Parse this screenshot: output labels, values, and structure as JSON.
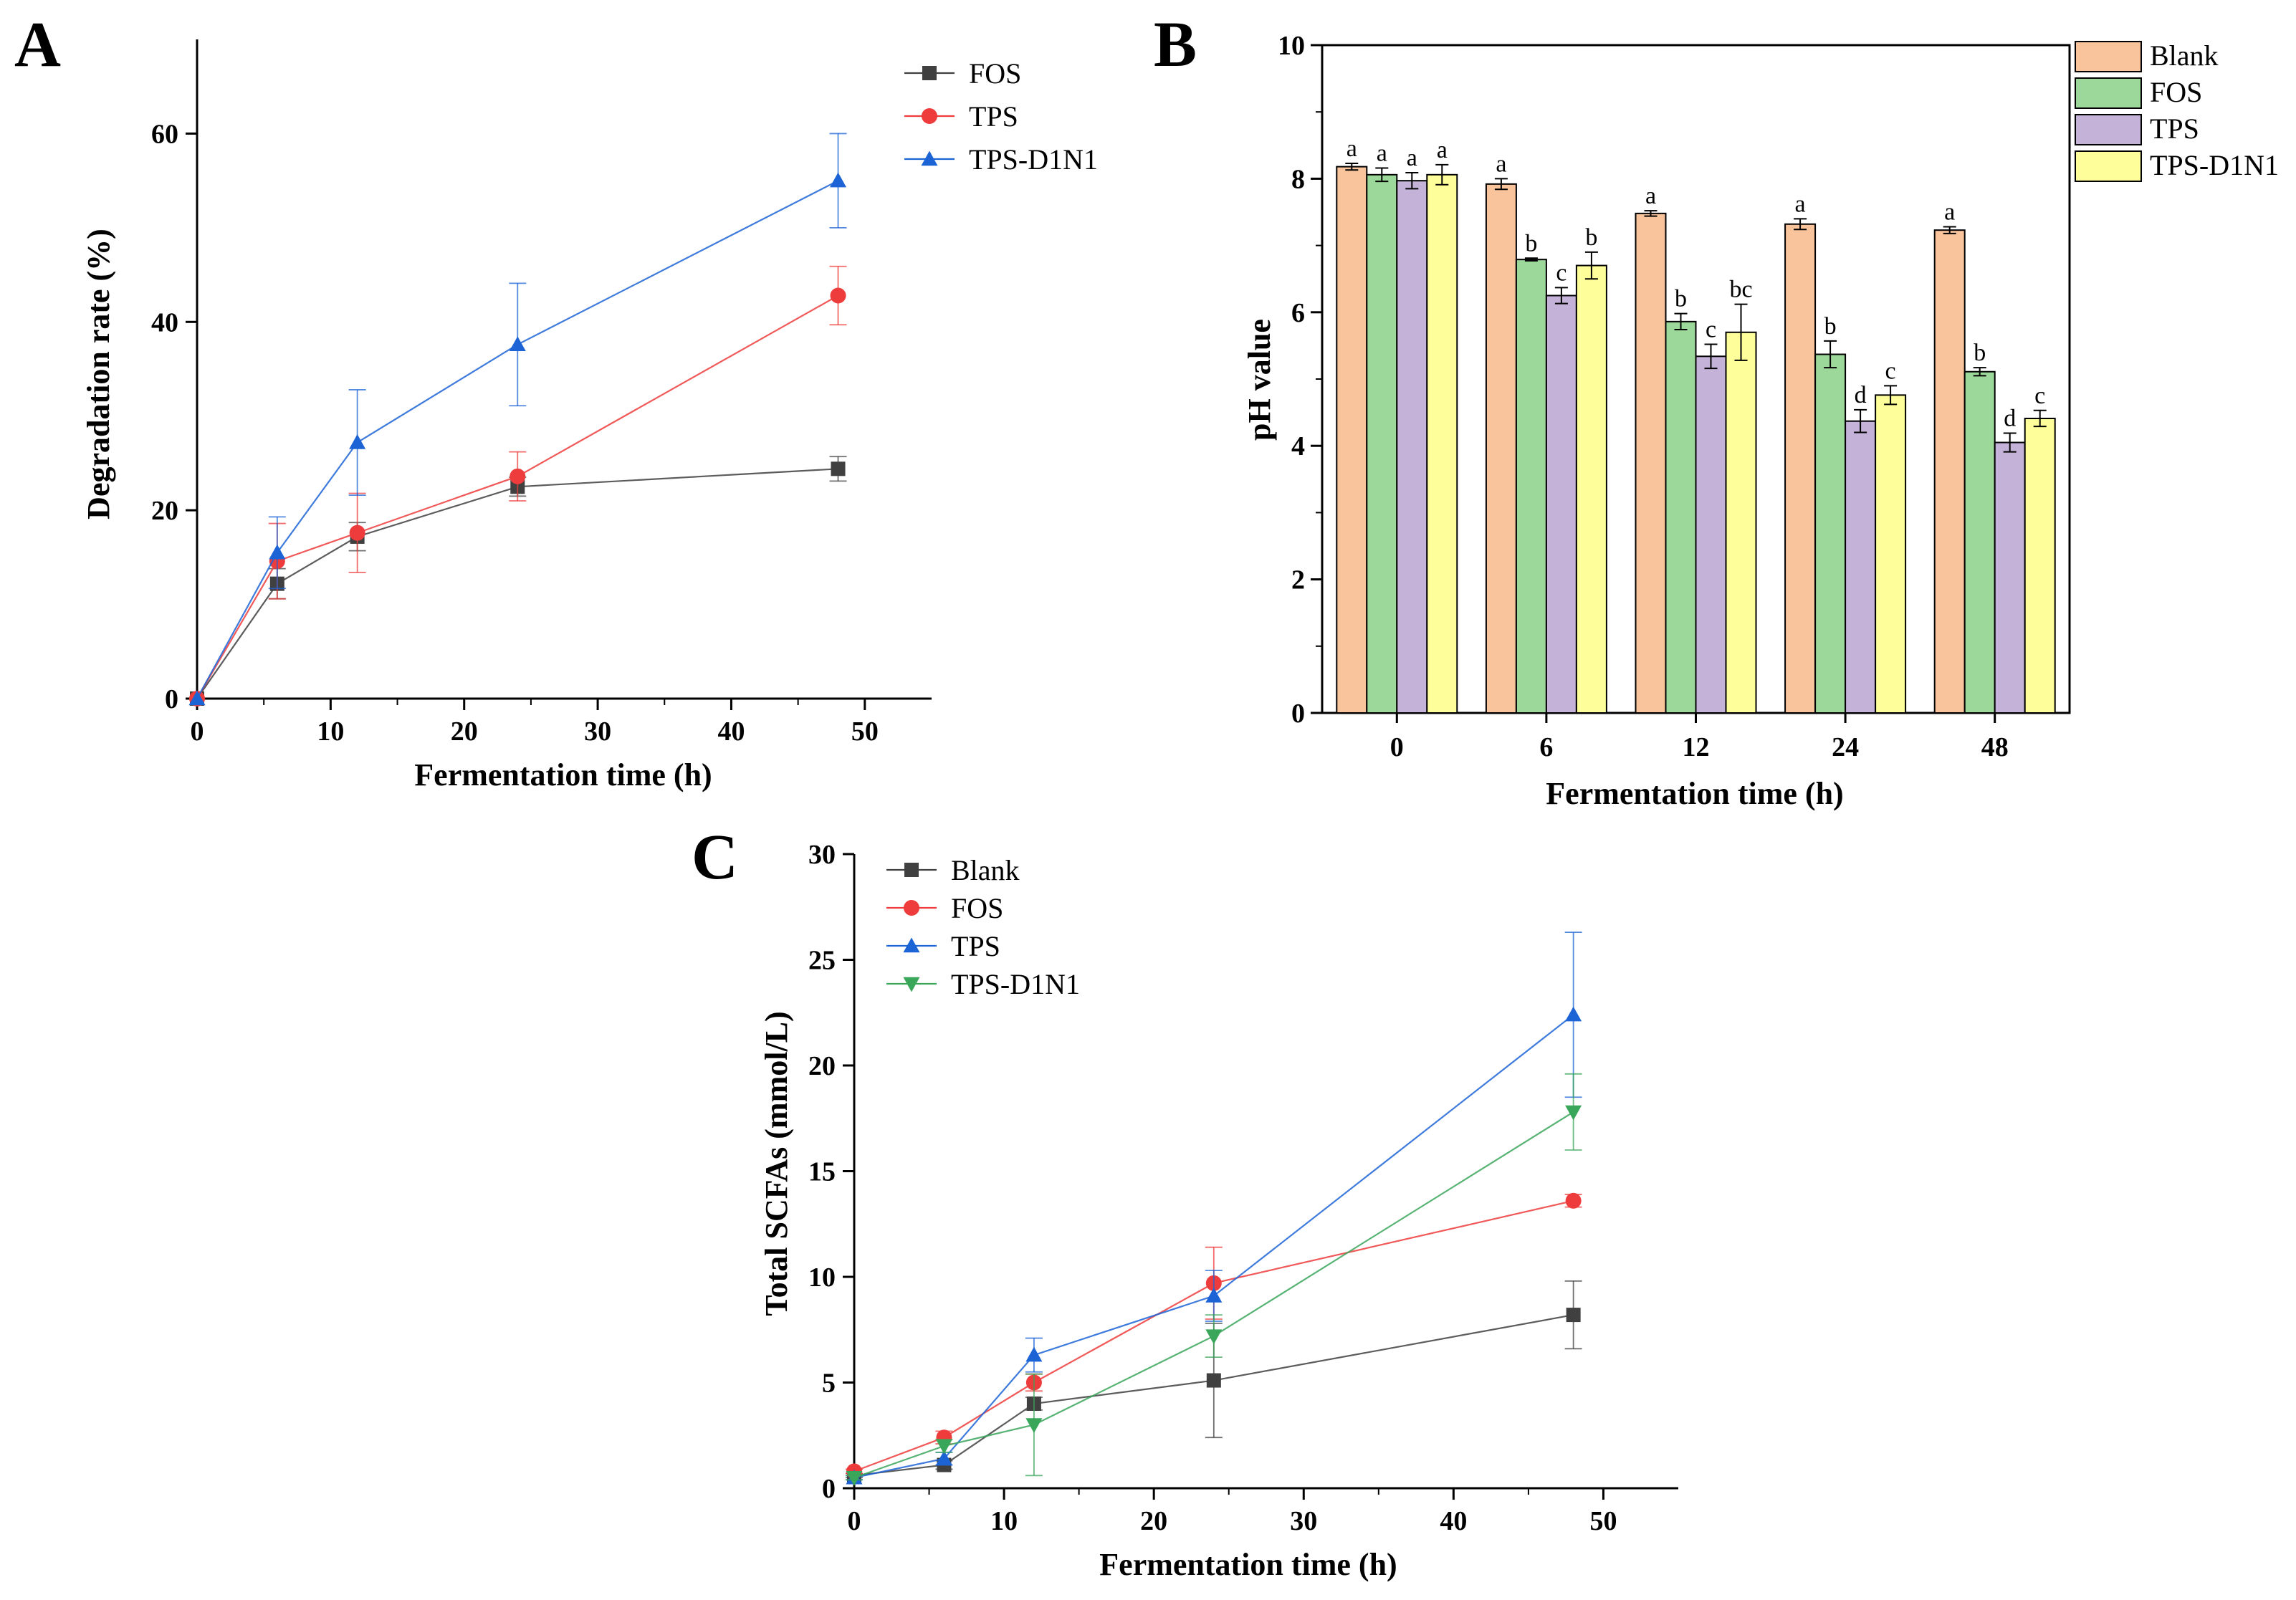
{
  "chart_data": [
    {
      "panel": "A",
      "type": "line",
      "xlabel": "Fermentation time (h)",
      "ylabel": "Degradation rate (%)",
      "xlim": [
        0,
        55
      ],
      "ylim": [
        0,
        70
      ],
      "xticks": [
        0,
        10,
        20,
        30,
        40,
        50
      ],
      "yticks": [
        0,
        20,
        40,
        60
      ],
      "legend_position": "top-right",
      "x": [
        0,
        6,
        12,
        24,
        48
      ],
      "series": [
        {
          "name": "FOS",
          "color": "#404040",
          "marker": "square",
          "values": [
            0,
            12.2,
            17.2,
            22.5,
            24.4
          ],
          "errors": [
            0,
            1.6,
            1.5,
            1.0,
            1.3
          ]
        },
        {
          "name": "TPS",
          "color": "#ee3b3b",
          "marker": "circle",
          "values": [
            0,
            14.6,
            17.6,
            23.6,
            42.8
          ],
          "errors": [
            0,
            4.0,
            4.2,
            2.6,
            3.1
          ]
        },
        {
          "name": "TPS-D1N1",
          "color": "#1c64d6",
          "marker": "triangle-up",
          "values": [
            0,
            15.5,
            27.2,
            37.6,
            55.0
          ],
          "errors": [
            0,
            3.8,
            5.6,
            6.5,
            5.0
          ]
        }
      ]
    },
    {
      "panel": "B",
      "type": "bar",
      "xlabel": "Fermentation time (h)",
      "ylabel": "pH value",
      "ylim": [
        0,
        10
      ],
      "yticks": [
        0,
        2,
        4,
        6,
        8,
        10
      ],
      "categories": [
        "0",
        "6",
        "12",
        "24",
        "48"
      ],
      "legend_position": "top-right",
      "series": [
        {
          "name": "Blank",
          "color": "#f9c49b",
          "values": [
            8.18,
            7.92,
            7.48,
            7.32,
            7.23
          ],
          "errors": [
            0.05,
            0.08,
            0.04,
            0.08,
            0.05
          ],
          "letters": [
            "a",
            "a",
            "a",
            "a",
            "a"
          ]
        },
        {
          "name": "FOS",
          "color": "#9dd89b",
          "values": [
            8.06,
            6.79,
            5.86,
            5.37,
            5.11
          ],
          "errors": [
            0.1,
            0.02,
            0.12,
            0.2,
            0.06
          ],
          "letters": [
            "a",
            "b",
            "b",
            "b",
            "b"
          ]
        },
        {
          "name": "TPS",
          "color": "#c4b2d8",
          "values": [
            7.97,
            6.25,
            5.34,
            4.37,
            4.05
          ],
          "errors": [
            0.12,
            0.12,
            0.18,
            0.17,
            0.14
          ],
          "letters": [
            "a",
            "c",
            "c",
            "d",
            "d"
          ]
        },
        {
          "name": "TPS-D1N1",
          "color": "#fefe9a",
          "values": [
            8.06,
            6.7,
            5.7,
            4.76,
            4.41
          ],
          "errors": [
            0.15,
            0.2,
            0.42,
            0.14,
            0.12
          ],
          "letters": [
            "a",
            "b",
            "bc",
            "c",
            "c"
          ]
        }
      ]
    },
    {
      "panel": "C",
      "type": "line",
      "xlabel": "Fermentation time (h)",
      "ylabel": "Total SCFAs (mmol/L)",
      "xlim": [
        0,
        55
      ],
      "ylim": [
        0,
        30
      ],
      "xticks": [
        0,
        10,
        20,
        30,
        40,
        50
      ],
      "yticks": [
        0,
        5,
        10,
        15,
        20,
        25,
        30
      ],
      "legend_position": "top-left",
      "x": [
        0,
        6,
        12,
        24,
        48
      ],
      "series": [
        {
          "name": "Blank",
          "color": "#404040",
          "marker": "square",
          "values": [
            0.6,
            1.1,
            4.0,
            5.1,
            8.2
          ],
          "errors": [
            0.1,
            0.2,
            0.3,
            2.7,
            1.6
          ]
        },
        {
          "name": "FOS",
          "color": "#ee3b3b",
          "marker": "circle",
          "values": [
            0.8,
            2.4,
            5.0,
            9.7,
            13.6
          ],
          "errors": [
            0.1,
            0.3,
            0.4,
            1.7,
            0.3
          ]
        },
        {
          "name": "TPS",
          "color": "#1c64d6",
          "marker": "triangle-up",
          "values": [
            0.5,
            1.4,
            6.3,
            9.1,
            22.4
          ],
          "errors": [
            0.1,
            0.3,
            0.8,
            1.2,
            3.9
          ]
        },
        {
          "name": "TPS-D1N1",
          "color": "#3aa65a",
          "marker": "triangle-down",
          "values": [
            0.5,
            2.0,
            3.0,
            7.2,
            17.8
          ],
          "errors": [
            0.1,
            0.3,
            2.4,
            1.0,
            1.8
          ]
        }
      ]
    }
  ]
}
